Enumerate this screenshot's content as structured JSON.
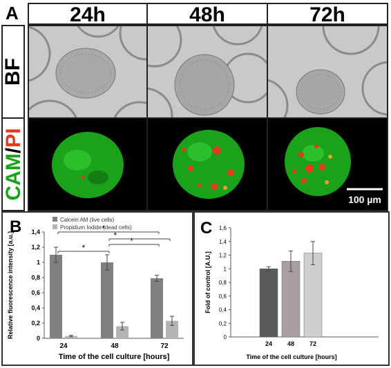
{
  "panels": {
    "a_letter": "A",
    "b_letter": "B",
    "c_letter": "C"
  },
  "columns": [
    "24h",
    "48h",
    "72h"
  ],
  "rows": {
    "bf_label": "BF",
    "cam_label": "CAM",
    "slash": "/",
    "pi_label": "PI"
  },
  "scale_bar": {
    "label": "100 µm"
  },
  "colors": {
    "cam_green": "#1aa31a",
    "pi_red": "#e23a1e",
    "calcein_bar": "#808080",
    "pi_bar": "#b4b4b4",
    "c_bar_24": "#5a5a5a",
    "c_bar_48": "#a8a0a0",
    "c_bar_72": "#cfcfcf"
  },
  "chart_data": [
    {
      "id": "B",
      "type": "bar",
      "categories": [
        "24",
        "48",
        "72"
      ],
      "series": [
        {
          "name": "Calcein AM    (live cells)",
          "values": [
            1.1,
            1.0,
            0.79
          ],
          "errors": [
            0.1,
            0.1,
            0.04
          ]
        },
        {
          "name": "Propidium Iodide  (dead cells)",
          "values": [
            0.03,
            0.16,
            0.23
          ],
          "errors": [
            0.01,
            0.05,
            0.06
          ]
        }
      ],
      "ylim": [
        0,
        1.4
      ],
      "yticks": [
        "0",
        "0,2",
        "0,4",
        "0,6",
        "0,8",
        "1",
        "1,2",
        "1,4"
      ],
      "ylabel": "Relative fluorescence intensity [a.u.]",
      "xlabel": "Time of the cell culture [hours]",
      "significance": [
        {
          "from": "24",
          "to": "48",
          "label": "*"
        },
        {
          "from": "48",
          "to": "72",
          "label": "*"
        },
        {
          "from": "48",
          "to": "72",
          "label": "*"
        },
        {
          "from": "24",
          "to": "72",
          "label": "*"
        }
      ],
      "legend": "top-left"
    },
    {
      "id": "C",
      "type": "bar",
      "categories": [
        "24",
        "48",
        "72"
      ],
      "values": [
        1.0,
        1.11,
        1.23
      ],
      "errors": [
        0.03,
        0.15,
        0.17
      ],
      "ylim": [
        0,
        1.6
      ],
      "yticks": [
        "0",
        "0,2",
        "0,4",
        "0,6",
        "0,8",
        "1",
        "1,2",
        "1,4",
        "1,6"
      ],
      "ylabel": "Fold of control [A.U.]",
      "xlabel": "Time of the cell culture [hours]"
    }
  ]
}
